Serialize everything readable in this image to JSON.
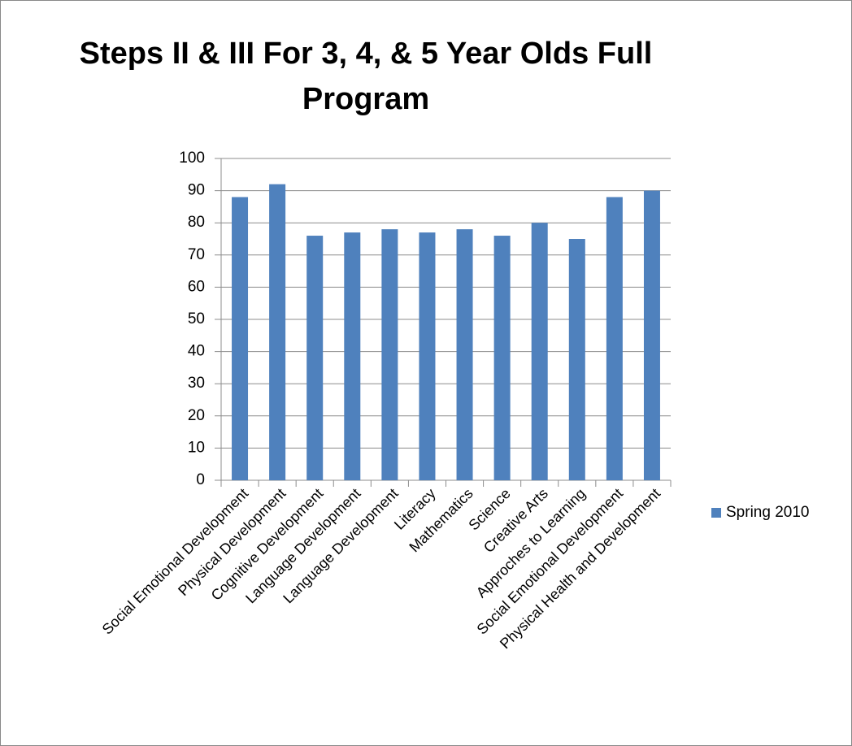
{
  "chart_data": {
    "type": "bar",
    "title": "Steps II & III For 3, 4, & 5 Year Olds Full Program",
    "categories": [
      "Social Emotional Development",
      "Physical Development",
      "Cognitive Development",
      "Language Development",
      "Language Development",
      "Literacy",
      "Mathematics",
      "Science",
      "Creative Arts",
      "Approches to Learning",
      "Social Emotional Development",
      "Physical Health and Development"
    ],
    "series": [
      {
        "name": "Spring 2010",
        "color": "#4f81bd",
        "values": [
          88,
          92,
          76,
          77,
          78,
          77,
          78,
          76,
          80,
          75,
          88,
          90
        ]
      }
    ],
    "ylim": [
      0,
      100
    ],
    "yticks": [
      0,
      10,
      20,
      30,
      40,
      50,
      60,
      70,
      80,
      90,
      100
    ],
    "grid": true,
    "legend": "right"
  }
}
